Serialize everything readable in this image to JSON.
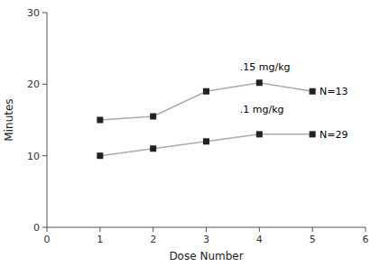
{
  "chart_data": {
    "type": "line",
    "x": [
      1,
      2,
      3,
      4,
      5
    ],
    "series": [
      {
        "color": "#aaaaaa",
        "marker": "square",
        "values": [
          15.0,
          15.5,
          19.0,
          20.2,
          19.0
        ]
      },
      {
        "color": "#aaaaaa",
        "marker": "square",
        "values": [
          10.0,
          11.0,
          12.0,
          13.0,
          13.0
        ]
      }
    ],
    "xlim": [
      0,
      6
    ],
    "ylim": [
      0,
      30
    ],
    "xticks": [
      0,
      1,
      2,
      3,
      4,
      5,
      6
    ],
    "yticks": [
      0,
      10,
      20,
      30
    ],
    "x_label": "Dose Number",
    "y_label": "Minutes",
    "annotations": [
      {
        "text": ".15 mg/kg",
        "x": 3.55,
        "y": 22.5
      },
      {
        "text": "N=13",
        "x": 5.05,
        "y": 19.0
      },
      {
        "text": ".1 mg/kg",
        "x": 3.55,
        "y": 16.5
      },
      {
        "text": "N=29",
        "x": 5.05,
        "y": 13.0
      }
    ],
    "grid": false
  }
}
